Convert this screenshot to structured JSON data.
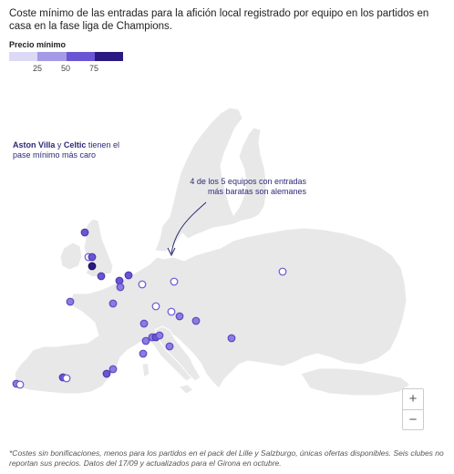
{
  "title": "Coste mínimo de las entradas para la afición local registrado por equipo en los partidos en casa en la fase liga de Champions.",
  "legend": {
    "title": "Precio mínimo",
    "colors": [
      "#dcd9f5",
      "#a49ae6",
      "#6a56d4",
      "#2a1a82"
    ],
    "ticks": [
      "25",
      "50",
      "75"
    ]
  },
  "annotations": {
    "villa": {
      "name1": "Aston Villa",
      "conj": "y",
      "name2": "Celtic",
      "rest": "tienen el",
      "line2": "pase mínimo más caro"
    },
    "germany": {
      "line1": "4 de los 5 equipos con entradas",
      "line2": "más baratas son alemanes"
    }
  },
  "zoom": {
    "in": "+",
    "out": "−"
  },
  "footnote": "*Costes sin bonificaciones, menos para los partidos en el pack del Lille y Salzburgo, únicas ofertas disponibles. Seis clubes no reportan sus precios. Datos del 17/09 y actualizados para el Girona en octubre.",
  "colors": {
    "land": "#e8e8e8",
    "border": "#ffffff",
    "annotation": "#2b2a78"
  }
}
